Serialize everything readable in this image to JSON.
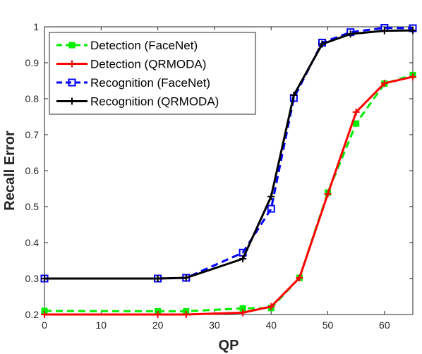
{
  "chart_data": {
    "type": "line",
    "xlabel": "QP",
    "ylabel": "Recall Error",
    "xlim": [
      0,
      65
    ],
    "ylim": [
      0.2,
      1
    ],
    "xticks": [
      0,
      10,
      20,
      30,
      40,
      50,
      60
    ],
    "yticks": [
      0.2,
      0.3,
      0.4,
      0.5,
      0.6,
      0.7,
      0.8,
      0.9,
      1
    ],
    "grid": false,
    "legend_position": "top-left",
    "series": [
      {
        "name": "Detection (FaceNet)",
        "color": "#00ee00",
        "line_style": "dashed",
        "marker": "filled-square",
        "x": [
          0,
          20,
          25,
          35,
          40,
          45,
          50,
          55,
          60,
          65
        ],
        "y": [
          0.21,
          0.209,
          0.209,
          0.217,
          0.218,
          0.302,
          0.539,
          0.731,
          0.842,
          0.866
        ]
      },
      {
        "name": "Detection (QRMODA)",
        "color": "#ff0000",
        "line_style": "solid",
        "marker": "plus",
        "x": [
          0,
          20,
          25,
          35,
          40,
          45,
          50,
          55,
          60,
          65
        ],
        "y": [
          0.2,
          0.2,
          0.2,
          0.205,
          0.222,
          0.302,
          0.535,
          0.763,
          0.843,
          0.861
        ]
      },
      {
        "name": "Recognition (FaceNet)",
        "color": "#0000ff",
        "line_style": "dashed",
        "marker": "open-square",
        "x": [
          0,
          20,
          25,
          35,
          40,
          44,
          49,
          54,
          60,
          65
        ],
        "y": [
          0.3,
          0.3,
          0.302,
          0.372,
          0.494,
          0.802,
          0.956,
          0.985,
          0.997,
          0.996
        ]
      },
      {
        "name": "Recognition (QRMODA)",
        "color": "#000000",
        "line_style": "solid",
        "marker": "plus",
        "x": [
          0,
          20,
          25,
          35,
          40,
          44,
          49,
          54,
          60,
          65
        ],
        "y": [
          0.3,
          0.3,
          0.302,
          0.355,
          0.528,
          0.81,
          0.952,
          0.98,
          0.989,
          0.99
        ]
      }
    ]
  }
}
